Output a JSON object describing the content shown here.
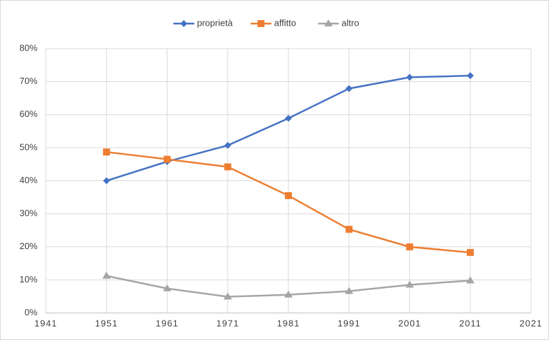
{
  "chart_data": {
    "type": "line",
    "x": [
      1951,
      1961,
      1971,
      1981,
      1991,
      2001,
      2011
    ],
    "series": [
      {
        "name": "proprietà",
        "color": "#4472c4",
        "marker": "diamond",
        "values": [
          40,
          45.8,
          50.7,
          58.9,
          67.9,
          71.3,
          71.8
        ]
      },
      {
        "name": "affitto",
        "color": "#ed7d31",
        "marker": "square",
        "values": [
          48.7,
          46.5,
          44.2,
          35.5,
          25.3,
          20,
          18.3
        ]
      },
      {
        "name": "altro",
        "color": "#a5a5a5",
        "marker": "triangle",
        "values": [
          11.2,
          7.4,
          4.9,
          5.5,
          6.6,
          8.5,
          9.8
        ]
      }
    ],
    "xlim": [
      1941,
      2021
    ],
    "xticks": [
      1941,
      1951,
      1961,
      1971,
      1981,
      1991,
      2001,
      2011,
      2021
    ],
    "ylim": [
      0,
      80
    ],
    "yticks": [
      {
        "value": 0,
        "label": "0%"
      },
      {
        "value": 10,
        "label": "10%"
      },
      {
        "value": 20,
        "label": "20%"
      },
      {
        "value": 30,
        "label": "30%"
      },
      {
        "value": 40,
        "label": "40%"
      },
      {
        "value": 50,
        "label": "50%"
      },
      {
        "value": 60,
        "label": "60%"
      },
      {
        "value": 70,
        "label": "70%"
      },
      {
        "value": 80,
        "label": "80%"
      }
    ],
    "grid": true,
    "legend": "top"
  }
}
